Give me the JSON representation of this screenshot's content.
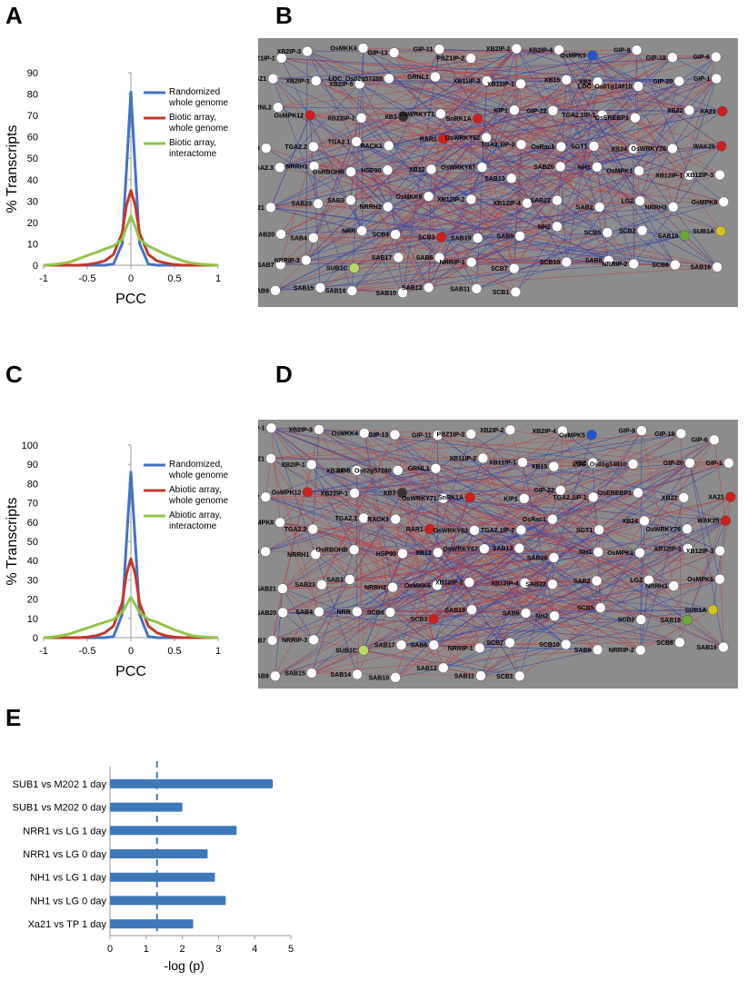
{
  "panels": {
    "A": "A",
    "B": "B",
    "C": "C",
    "D": "D",
    "E": "E"
  },
  "colors": {
    "blue": "#4472c4",
    "red": "#c0392b",
    "green": "#92c44a",
    "network_bg": "#8c8c8c",
    "bar_fill": "#3f78b8"
  },
  "chart_data": [
    {
      "type": "line",
      "panel": "A",
      "xlabel": "PCC",
      "ylabel": "% Transcripts",
      "xlim": [
        -1,
        1
      ],
      "ylim": [
        0,
        90
      ],
      "xticks": [
        "-1",
        "-0.5",
        "0",
        "0.5",
        "1"
      ],
      "yticks": [
        "0",
        "10",
        "20",
        "30",
        "40",
        "50",
        "60",
        "70",
        "80",
        "90"
      ],
      "x": [
        -1,
        -0.9,
        -0.8,
        -0.7,
        -0.6,
        -0.5,
        -0.4,
        -0.3,
        -0.2,
        -0.1,
        -0.05,
        0,
        0.05,
        0.1,
        0.2,
        0.3,
        0.4,
        0.5,
        0.6,
        0.7,
        0.8,
        0.9,
        1
      ],
      "series": [
        {
          "name": "Randomized whole genome",
          "color": "#4472c4",
          "values": [
            0,
            0,
            0,
            0,
            0,
            0,
            0,
            0,
            0.5,
            10,
            45,
            81,
            45,
            10,
            0.5,
            0,
            0,
            0,
            0,
            0,
            0,
            0,
            0
          ]
        },
        {
          "name": "Biotic array, whole genome",
          "color": "#c0392b",
          "values": [
            0,
            0,
            0,
            0,
            0,
            0.3,
            1,
            2,
            5,
            15,
            28,
            35,
            28,
            15,
            5,
            2,
            1,
            0.3,
            0,
            0,
            0,
            0,
            0
          ]
        },
        {
          "name": "Biotic array, interactome",
          "color": "#92c44a",
          "values": [
            0,
            0.3,
            0.8,
            1.5,
            3,
            4.5,
            6,
            7.5,
            9,
            12,
            18,
            23,
            18,
            12,
            9,
            7,
            5,
            3.5,
            2,
            1,
            0.5,
            0.2,
            0
          ]
        }
      ],
      "legend": [
        "Randomized",
        "whole genome",
        "Biotic array,",
        "whole genome",
        "Biotic array,",
        "interactome"
      ]
    },
    {
      "type": "line",
      "panel": "C",
      "xlabel": "PCC",
      "ylabel": "% Transcripts",
      "xlim": [
        -1,
        1
      ],
      "ylim": [
        0,
        100
      ],
      "xticks": [
        "-1",
        "-0.5",
        "0",
        "0.5",
        "1"
      ],
      "yticks": [
        "0",
        "10",
        "20",
        "30",
        "40",
        "50",
        "60",
        "70",
        "80",
        "90",
        "100"
      ],
      "x": [
        -1,
        -0.9,
        -0.8,
        -0.7,
        -0.6,
        -0.5,
        -0.4,
        -0.3,
        -0.2,
        -0.1,
        -0.05,
        0,
        0.05,
        0.1,
        0.2,
        0.3,
        0.4,
        0.5,
        0.6,
        0.7,
        0.8,
        0.9,
        1
      ],
      "series": [
        {
          "name": "Randomized, whole genome",
          "color": "#4472c4",
          "values": [
            0,
            0,
            0,
            0,
            0,
            0,
            0,
            0,
            0.5,
            12,
            50,
            86,
            50,
            12,
            0.5,
            0,
            0,
            0,
            0,
            0,
            0,
            0,
            0
          ]
        },
        {
          "name": "Abiotic array, whole genome",
          "color": "#c0392b",
          "values": [
            0,
            0,
            0,
            0,
            0,
            0.3,
            1,
            2.5,
            6,
            18,
            33,
            41,
            33,
            18,
            6,
            2.5,
            1,
            0.3,
            0,
            0,
            0,
            0,
            0
          ]
        },
        {
          "name": "Abiotic array, interactome",
          "color": "#92c44a",
          "values": [
            0,
            0.3,
            1,
            2,
            3.5,
            5,
            6.5,
            8,
            9.5,
            13,
            17,
            21,
            17,
            13,
            9.5,
            8,
            6,
            4,
            2.5,
            1,
            0.5,
            0.2,
            0
          ]
        }
      ],
      "legend": [
        "Randomized,",
        "whole genome",
        "Abiotic array,",
        "whole genome",
        "Abiotic array,",
        "interactome"
      ]
    },
    {
      "type": "bar",
      "orientation": "horizontal",
      "panel": "E",
      "xlabel": "-log (p)",
      "xlim": [
        0,
        5
      ],
      "xticks": [
        "0",
        "1",
        "2",
        "3",
        "4",
        "5"
      ],
      "threshold": 1.3,
      "categories": [
        "SUB1 vs M202 1 day",
        "SUB1 vs M202 0 day",
        "NRR1 vs LG 1 day",
        "NRR1 vs LG 0 day",
        "NH1 vs LG 1 day",
        "NH1 vs LG 0 day",
        "Xa21 vs TP 1 day"
      ],
      "values": [
        4.5,
        2.0,
        3.5,
        2.7,
        2.9,
        3.2,
        2.3
      ]
    }
  ],
  "network_nodes": [
    "PBZ1IP-1",
    "XB2IP-3",
    "OsMKK4",
    "GIP-13",
    "GIP-11",
    "PBZ1IP-2",
    "XB2IP-2",
    "XB2IP-4",
    "OsMPK5",
    "GIP-9",
    "GIP-18",
    "GIP-6",
    "PBZ1",
    "XB2IP-1",
    "XB2IP-5",
    "LOC_Os02g57280",
    "GRNL1",
    "XB11IP-2",
    "XB11IP-1",
    "XB15",
    "XB2",
    "LOC_Os01g14810",
    "GIP-20",
    "GIP-1",
    "GRNL2",
    "OsMPK12",
    "XB22IP-1",
    "XB3",
    "OsWRKY71",
    "SnRK1A",
    "KIP1",
    "GIP-22",
    "TGA2.1IP-1",
    "OsEREBP1",
    "XB22",
    "XA21",
    "OsMPK8",
    "TGA2.2",
    "TGA2.1",
    "RACK1",
    "RAR1",
    "OsWRKY62",
    "TGA2.1IP-2",
    "OsRac1",
    "SGT1",
    "XB24",
    "OsWRKY76",
    "WAK25",
    "TGA2.3",
    "NRRH1",
    "OsRBOHB",
    "HSP90",
    "XB12",
    "OsWRKY67",
    "SAB13",
    "SAB26",
    "NH1",
    "OsMPK1",
    "XB12IP-1",
    "XB12IP-3",
    "SAB21",
    "SAB23",
    "SAB3",
    "NRRH2",
    "OsMKK6",
    "XB12IP-2",
    "XB12IP-4",
    "SAB22",
    "SAB2",
    "LG2",
    "NRRH3",
    "OsMPK6",
    "SAB20",
    "SAB4",
    "NRR",
    "SCB4",
    "SCB3",
    "SAB19",
    "SAB5",
    "NH2",
    "SCB5",
    "SCB2",
    "SAB18",
    "SUB1A",
    "SAB7",
    "NRRIP-3",
    "SUB1C",
    "SAB17",
    "SAB6",
    "NRRIP-1",
    "SCB7",
    "SCB10",
    "SAB8",
    "NRRIP-2",
    "SCB6",
    "SAB16",
    "SAB9",
    "SAB15",
    "SAB14",
    "SAB10",
    "SAB12",
    "SAB11",
    "SCB1"
  ],
  "network_edges_note": ""
}
